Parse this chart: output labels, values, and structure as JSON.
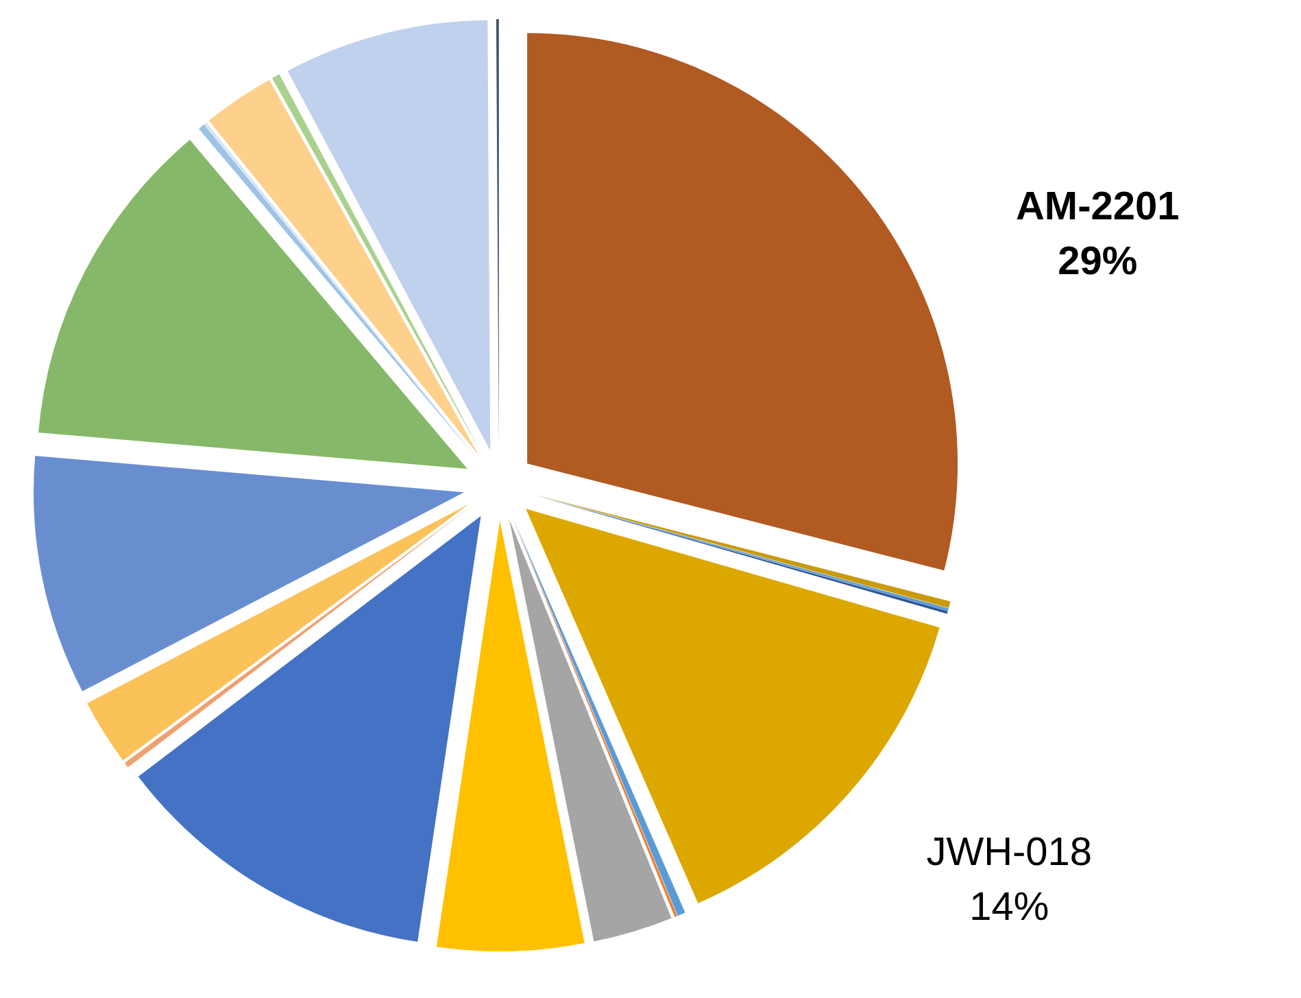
{
  "chart_data": {
    "type": "pie",
    "categories": [
      "AM-2201",
      null,
      null,
      null,
      "JWH-018",
      null,
      null,
      null,
      null,
      null,
      null,
      null,
      null,
      null,
      null,
      null,
      null,
      null,
      null,
      null
    ],
    "values": [
      29,
      0.25,
      0.1,
      0.1,
      14,
      0.3,
      0.1,
      3.0,
      5.5,
      12.3,
      0.2,
      2.5,
      9.0,
      12.5,
      0.25,
      0.1,
      2.7,
      0.3,
      7.7,
      0.1
    ],
    "colors": [
      "#b15a21",
      "#c99a0c",
      "#5b9bd5",
      "#2f5597",
      "#dca800",
      "#5b9bd5",
      "#ed7d31",
      "#a5a5a5",
      "#ffc000",
      "#4472c4",
      "#f0a070",
      "#fbc25a",
      "#698ed0",
      "#85b868",
      "#9dc3e6",
      "#dae3f3",
      "#fdd08c",
      "#a9d18e",
      "#bfd1ec",
      "#44546a"
    ],
    "value_labels": [
      "29%",
      null,
      null,
      null,
      "14%",
      null,
      null,
      null,
      null,
      null,
      null,
      null,
      null,
      null,
      null,
      null,
      null,
      null,
      null,
      null
    ]
  }
}
